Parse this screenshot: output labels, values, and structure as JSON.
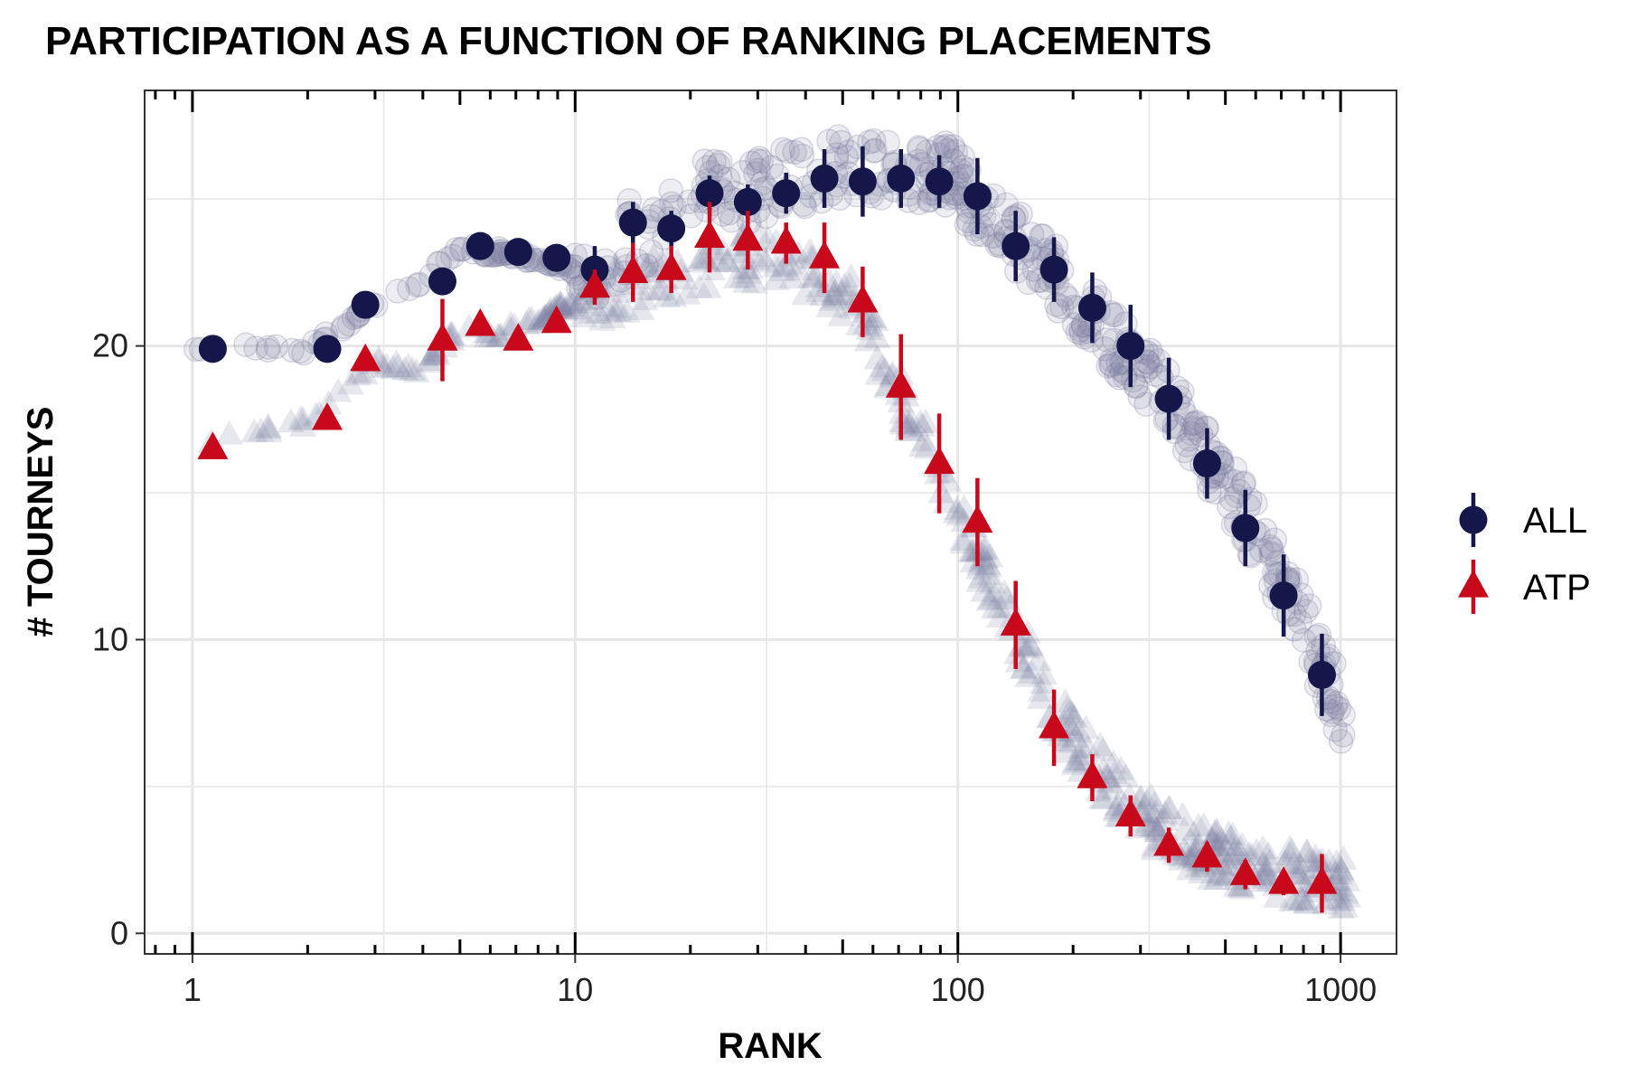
{
  "chart_data": {
    "type": "scatter",
    "title": "PARTICIPATION AS A FUNCTION OF RANKING PLACEMENTS",
    "xlabel": "RANK",
    "ylabel": "# TOURNEYS",
    "x_scale": "log10",
    "xlim": [
      0.75,
      1400
    ],
    "ylim": [
      -0.7,
      28.7
    ],
    "x_ticks": [
      1,
      10,
      100,
      1000
    ],
    "x_tick_labels": [
      "1",
      "10",
      "100",
      "1000"
    ],
    "y_ticks": [
      0,
      10,
      20
    ],
    "y_tick_labels": [
      "0",
      "10",
      "20"
    ],
    "grid": true,
    "legend_position": "right",
    "colors": {
      "all": "#15164a",
      "atp": "#c8091c",
      "raw_points": "#7c7ea0",
      "grid": "#e6e6e6",
      "panel_border": "#333333"
    },
    "series": [
      {
        "name": "ALL",
        "marker": "circle",
        "x": [
          1.13,
          2.25,
          2.83,
          4.5,
          5.65,
          7.1,
          8.94,
          11.25,
          14.16,
          17.83,
          22.45,
          28.26,
          35.58,
          44.8,
          56.4,
          71.0,
          89.4,
          112.5,
          141.6,
          178.3,
          224.5,
          282.6,
          355.8,
          447.9,
          563.9,
          709.9,
          893.7
        ],
        "y": [
          19.9,
          19.9,
          21.4,
          22.2,
          23.4,
          23.2,
          23.0,
          22.6,
          24.2,
          24.0,
          25.2,
          24.9,
          25.2,
          25.7,
          25.6,
          25.7,
          25.6,
          25.1,
          23.4,
          22.6,
          21.3,
          20.0,
          18.2,
          16.0,
          13.8,
          11.5,
          8.8
        ],
        "err": [
          0,
          0,
          0,
          0,
          0,
          0,
          0,
          0.8,
          0.7,
          0.6,
          0.6,
          0.6,
          0.7,
          1.0,
          1.2,
          1.0,
          0.9,
          1.3,
          1.2,
          1.1,
          1.2,
          1.4,
          1.4,
          1.2,
          1.3,
          1.4,
          1.4
        ]
      },
      {
        "name": "ATP",
        "marker": "triangle",
        "x": [
          1.13,
          2.25,
          2.83,
          4.5,
          5.65,
          7.1,
          8.94,
          11.25,
          14.16,
          17.83,
          22.45,
          28.26,
          35.58,
          44.8,
          56.4,
          71.0,
          89.4,
          112.5,
          141.6,
          178.3,
          224.5,
          282.6,
          355.8,
          447.9,
          563.9,
          709.9,
          893.7
        ],
        "y": [
          16.5,
          17.5,
          19.5,
          20.2,
          20.7,
          20.2,
          20.8,
          22.0,
          22.5,
          22.6,
          23.7,
          23.6,
          23.5,
          23.0,
          21.5,
          18.6,
          16.0,
          14.0,
          10.5,
          7.0,
          5.3,
          4.0,
          3.0,
          2.6,
          2.0,
          1.7,
          1.7
        ],
        "err": [
          0,
          0,
          0,
          1.4,
          0,
          0,
          0,
          0.6,
          1.0,
          0.8,
          1.2,
          1.0,
          0.7,
          1.2,
          1.2,
          1.8,
          1.7,
          1.5,
          1.5,
          1.3,
          0.8,
          0.7,
          0.6,
          0.5,
          0.5,
          0.4,
          1.0
        ]
      }
    ],
    "raw_scatter_note_series": [
      {
        "name": "ALL (individual)",
        "marker": "circle",
        "x": [
          1,
          2,
          3,
          4,
          5,
          6,
          7,
          8,
          9,
          10,
          12,
          14,
          16,
          18,
          20,
          23,
          26,
          30,
          35,
          40,
          45,
          50,
          60,
          70,
          80,
          90,
          100,
          110,
          120,
          140,
          160,
          180,
          200,
          230,
          260,
          300,
          350,
          400,
          450,
          500,
          600,
          700,
          800,
          900,
          1000
        ],
        "y": [
          19.9,
          19.9,
          21.4,
          22.2,
          23.4,
          23.2,
          23.1,
          23.0,
          22.8,
          22.6,
          22.3,
          24.0,
          23.6,
          24.4,
          25.2,
          25.4,
          25.0,
          25.3,
          25.6,
          25.8,
          26.0,
          26.1,
          26.0,
          26.2,
          25.8,
          26.0,
          25.6,
          24.9,
          24.4,
          23.6,
          23.0,
          22.4,
          21.6,
          20.8,
          20.1,
          19.3,
          18.3,
          17.2,
          16.2,
          15.3,
          13.6,
          12.0,
          10.6,
          9.0,
          7.6
        ]
      },
      {
        "name": "ATP (individual)",
        "marker": "triangle",
        "x": [
          1,
          2,
          3,
          4,
          5,
          6,
          7,
          8,
          9,
          10,
          12,
          14,
          16,
          18,
          20,
          23,
          26,
          30,
          35,
          40,
          45,
          50,
          55,
          60,
          70,
          80,
          90,
          100,
          110,
          120,
          140,
          160,
          180,
          200,
          230,
          260,
          300,
          350,
          400,
          450,
          500,
          600,
          700,
          800,
          900,
          1000
        ],
        "y": [
          16.6,
          17.4,
          19.4,
          19.2,
          20.6,
          20.3,
          20.6,
          20.8,
          21.2,
          21.5,
          21.7,
          22.0,
          22.2,
          22.4,
          22.6,
          22.9,
          23.0,
          23.0,
          22.8,
          22.5,
          22.2,
          21.8,
          21.2,
          20.2,
          18.4,
          16.8,
          15.6,
          14.4,
          13.2,
          12.0,
          10.4,
          8.8,
          7.6,
          6.6,
          5.6,
          4.8,
          4.0,
          3.4,
          3.0,
          2.7,
          2.5,
          2.2,
          2.0,
          1.9,
          1.8,
          1.7
        ]
      }
    ]
  }
}
